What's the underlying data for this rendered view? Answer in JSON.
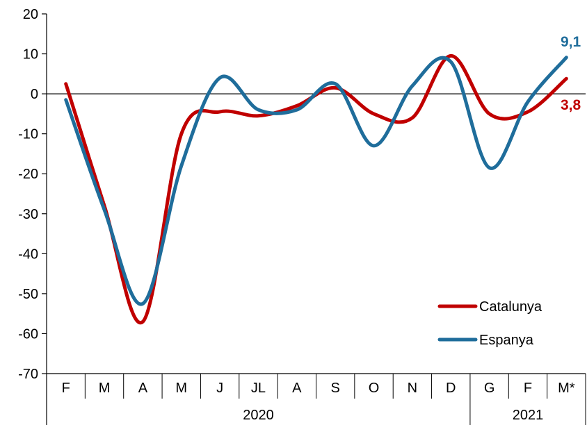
{
  "chart_data": {
    "type": "line",
    "title": "",
    "xlabel": "",
    "ylabel": "",
    "ylim": [
      -70,
      20
    ],
    "yticks": [
      20,
      10,
      0,
      -10,
      -20,
      -30,
      -40,
      -50,
      -60,
      -70
    ],
    "categories": [
      "F",
      "M",
      "A",
      "M",
      "J",
      "JL",
      "A",
      "S",
      "O",
      "N",
      "D",
      "G",
      "F",
      "M*"
    ],
    "year_groups": [
      {
        "label": "2020",
        "start": 0,
        "end": 10
      },
      {
        "label": "2021",
        "start": 11,
        "end": 13
      }
    ],
    "zero_line": true,
    "grid": false,
    "legend_position": "bottom-right",
    "series": [
      {
        "name": "Catalunya",
        "color": "#c00000",
        "values": [
          2.5,
          -28,
          -57,
          -10,
          -4.5,
          -5.5,
          -3,
          1.5,
          -5,
          -6,
          9.5,
          -5,
          -4.5,
          3.8
        ],
        "end_label": "3,8"
      },
      {
        "name": "Espanya",
        "color": "#1f6d9b",
        "values": [
          -1.5,
          -29,
          -52.5,
          -18,
          4,
          -4,
          -4,
          2.5,
          -13,
          2,
          8,
          -18.5,
          -2,
          9.1
        ],
        "end_label": "9,1"
      }
    ]
  }
}
